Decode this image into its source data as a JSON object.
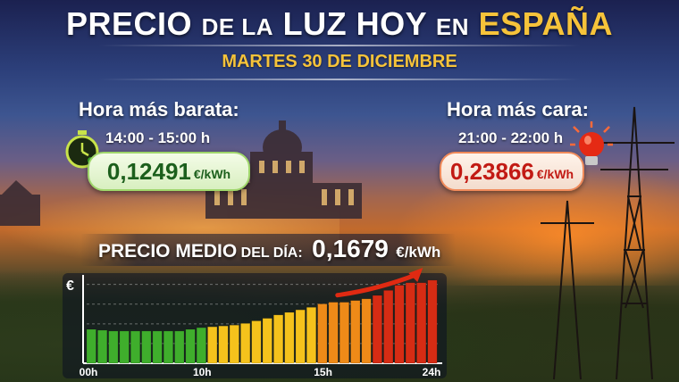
{
  "header": {
    "title_part1": "PRECIO",
    "title_part2": "DE LA",
    "title_part3": "LUZ HOY",
    "title_part4": "EN",
    "title_part5": "ESPAÑA",
    "date": "MARTES 30 DE DICIEMBRE"
  },
  "cheapest": {
    "label": "Hora más barata:",
    "time": "14:00 - 15:00 h",
    "price": "0,12491",
    "unit": "€/kWh"
  },
  "most_expensive": {
    "label": "Hora más cara:",
    "time": "21:00 - 22:00 h",
    "price": "0,23866",
    "unit": "€/kWh"
  },
  "average": {
    "label_main": "PRECIO MEDIO",
    "label_small": "DEL DÍA:",
    "price": "0,1679",
    "unit": "€/kWh"
  },
  "chart_data": {
    "type": "bar",
    "ylabel": "€",
    "x_tick_labels": [
      "00h",
      "10h",
      "15h",
      "24h"
    ],
    "values": [
      0.4,
      0.39,
      0.38,
      0.38,
      0.38,
      0.38,
      0.38,
      0.38,
      0.38,
      0.4,
      0.42,
      0.43,
      0.44,
      0.45,
      0.47,
      0.5,
      0.53,
      0.57,
      0.6,
      0.63,
      0.66,
      0.7,
      0.72,
      0.72,
      0.74,
      0.76,
      0.8,
      0.86,
      0.92,
      0.95,
      0.95,
      0.98
    ],
    "colors": {
      "green": "#3fae2c",
      "yellow": "#f5c21c",
      "orange": "#ee8a18",
      "red": "#d62c14"
    },
    "trend_arrow_color": "#e02a12",
    "grid": true
  }
}
